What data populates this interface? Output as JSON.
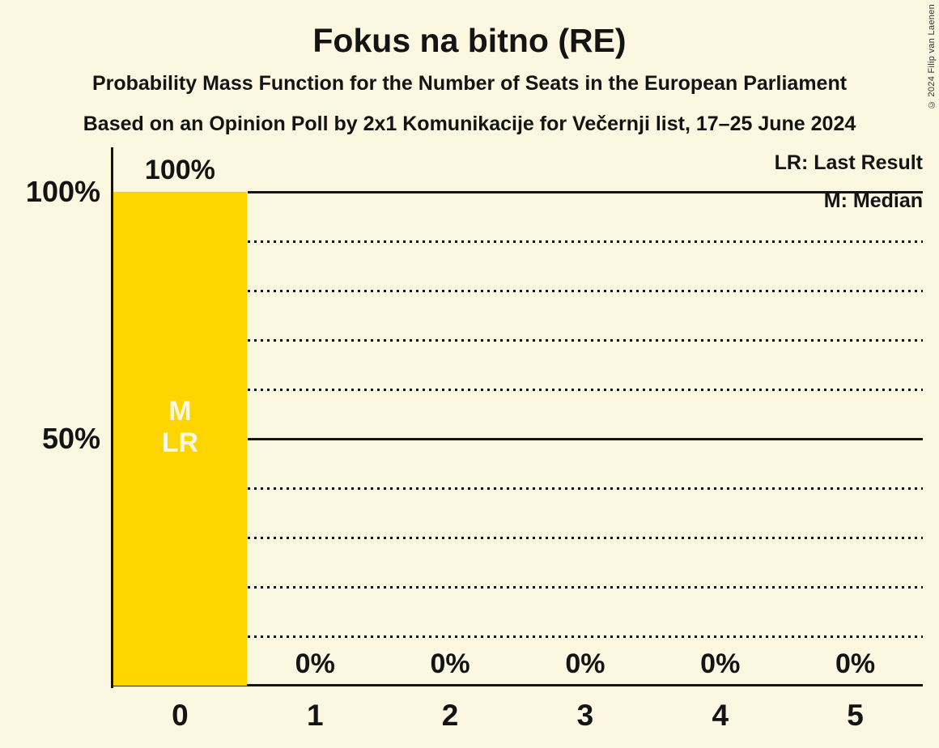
{
  "header": {
    "title": "Fokus na bitno (RE)",
    "subtitle1": "Probability Mass Function for the Number of Seats in the European Parliament",
    "subtitle2": "Based on an Opinion Poll by 2x1 Komunikacije for Večernji list, 17–25 June 2024",
    "copyright": "© 2024 Filip van Laenen"
  },
  "legend": {
    "lr": "LR: Last Result",
    "m": "M: Median"
  },
  "colors": {
    "background": "#FCF7E1",
    "bar": "#FFD500",
    "text": "#141414",
    "bar_text": "#FCF7E1"
  },
  "chart_data": {
    "type": "bar",
    "title": "Fokus na bitno (RE)",
    "xlabel": "",
    "ylabel": "",
    "categories": [
      "0",
      "1",
      "2",
      "3",
      "4",
      "5"
    ],
    "values": [
      100,
      0,
      0,
      0,
      0,
      0
    ],
    "value_labels": [
      "100%",
      "0%",
      "0%",
      "0%",
      "0%",
      "0%"
    ],
    "ylim": [
      0,
      100
    ],
    "y_tick_labels": [
      {
        "pct": 100,
        "label": "100%"
      },
      {
        "pct": 50,
        "label": "50%"
      }
    ],
    "y_solid_gridlines_pct": [
      100,
      50
    ],
    "y_dotted_gridlines_pct": [
      90,
      80,
      70,
      60,
      40,
      30,
      20,
      10
    ],
    "grid": "horizontal, dotted minor / solid major",
    "legend_position": "top-right",
    "bar_color": "#FFD500",
    "annotations": [
      {
        "category_index": 0,
        "lines": [
          "M",
          "LR"
        ]
      }
    ]
  }
}
